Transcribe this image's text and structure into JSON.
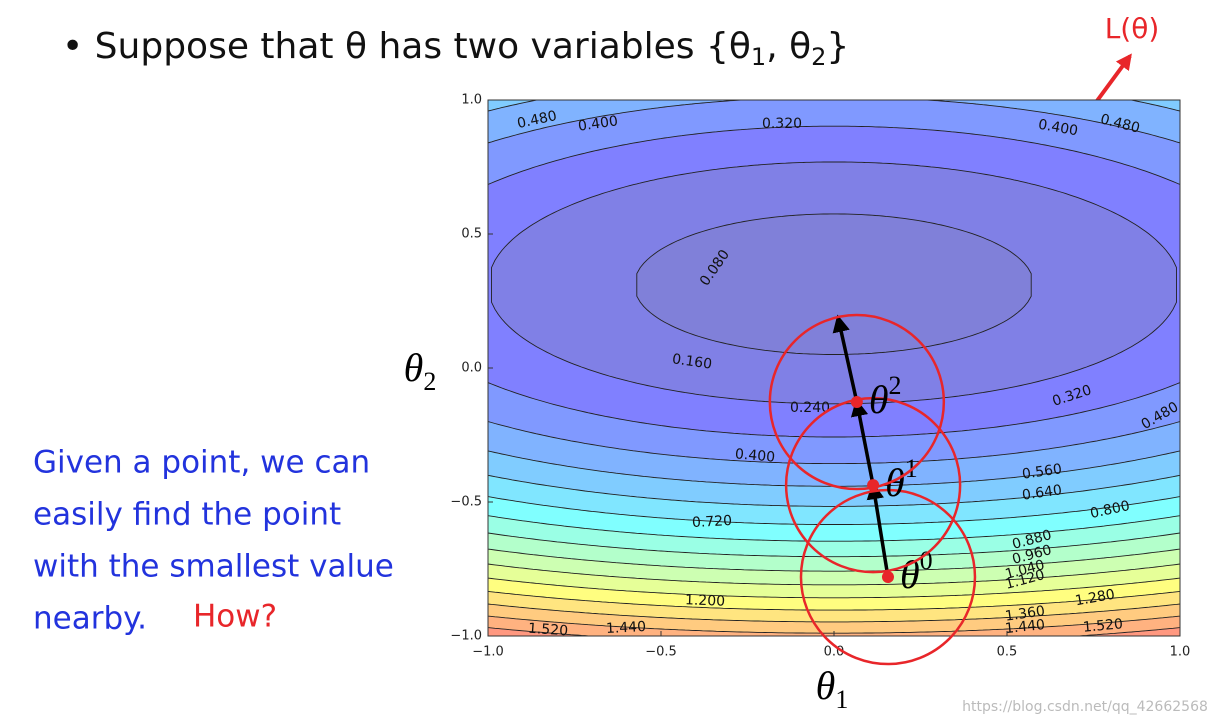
{
  "chart_data": {
    "type": "contour",
    "title_parts": [
      "• Suppose that θ has two variables {θ",
      "1",
      ", θ",
      "2",
      "}"
    ],
    "function_label": "L(θ)",
    "x_label": {
      "symbol": "θ",
      "sub": "1"
    },
    "y_label": {
      "symbol": "θ",
      "sub": "2"
    },
    "xlim": [
      -1,
      1
    ],
    "ylim": [
      -1,
      1
    ],
    "xticks": [
      {
        "value": -1,
        "label": "−1.0"
      },
      {
        "value": -0.5,
        "label": "−0.5"
      },
      {
        "value": 0,
        "label": "0.0"
      },
      {
        "value": 0.5,
        "label": "0.5"
      },
      {
        "value": 1,
        "label": "1.0"
      }
    ],
    "yticks": [
      {
        "value": -1,
        "label": "−1.0"
      },
      {
        "value": -0.5,
        "label": "−0.5"
      },
      {
        "value": 0,
        "label": "0.0"
      },
      {
        "value": 0.5,
        "label": "0.5"
      },
      {
        "value": 1,
        "label": "1.0"
      }
    ],
    "contour_labels": [
      {
        "value": 0.48,
        "label": "0.480"
      },
      {
        "value": 0.4,
        "label": "0.400"
      },
      {
        "value": 0.32,
        "label": "0.320"
      },
      {
        "value": 0.4,
        "label": "0.400"
      },
      {
        "value": 0.48,
        "label": "0.480"
      },
      {
        "value": 0.08,
        "label": "0.080"
      },
      {
        "value": 0.16,
        "label": "0.160"
      },
      {
        "value": 0.24,
        "label": "0.240"
      },
      {
        "value": 0.32,
        "label": "0.320"
      },
      {
        "value": 0.48,
        "label": "0.480"
      },
      {
        "value": 0.4,
        "label": "0.400"
      },
      {
        "value": 0.56,
        "label": "0.560"
      },
      {
        "value": 0.64,
        "label": "0.640"
      },
      {
        "value": 0.72,
        "label": "0.720"
      },
      {
        "value": 0.8,
        "label": "0.800"
      },
      {
        "value": 0.88,
        "label": "0.880"
      },
      {
        "value": 0.96,
        "label": "0.960"
      },
      {
        "value": 1.04,
        "label": "1.040"
      },
      {
        "value": 1.12,
        "label": "1.120"
      },
      {
        "value": 1.2,
        "label": "1.200"
      },
      {
        "value": 1.28,
        "label": "1.280"
      },
      {
        "value": 1.36,
        "label": "1.360"
      },
      {
        "value": 1.44,
        "label": "1.440"
      },
      {
        "value": 1.52,
        "label": "1.520"
      },
      {
        "value": 1.44,
        "label": "1.440"
      },
      {
        "value": 1.52,
        "label": "1.520"
      }
    ],
    "steps": [
      {
        "symbol": "θ",
        "sup": "0",
        "x": 0.156,
        "y": -0.78
      },
      {
        "symbol": "θ",
        "sup": "1",
        "x": 0.113,
        "y": -0.437
      },
      {
        "symbol": "θ",
        "sup": "2",
        "x": 0.066,
        "y": -0.127
      },
      {
        "x": 0.012,
        "y": 0.187
      }
    ],
    "step_color": "#e8262a",
    "note_lines": [
      "Given a point, we can",
      "easily find the point",
      "with the smallest value",
      "nearby."
    ],
    "question": "How?",
    "watermark": "https://blog.csdn.net/qq_42662568"
  }
}
